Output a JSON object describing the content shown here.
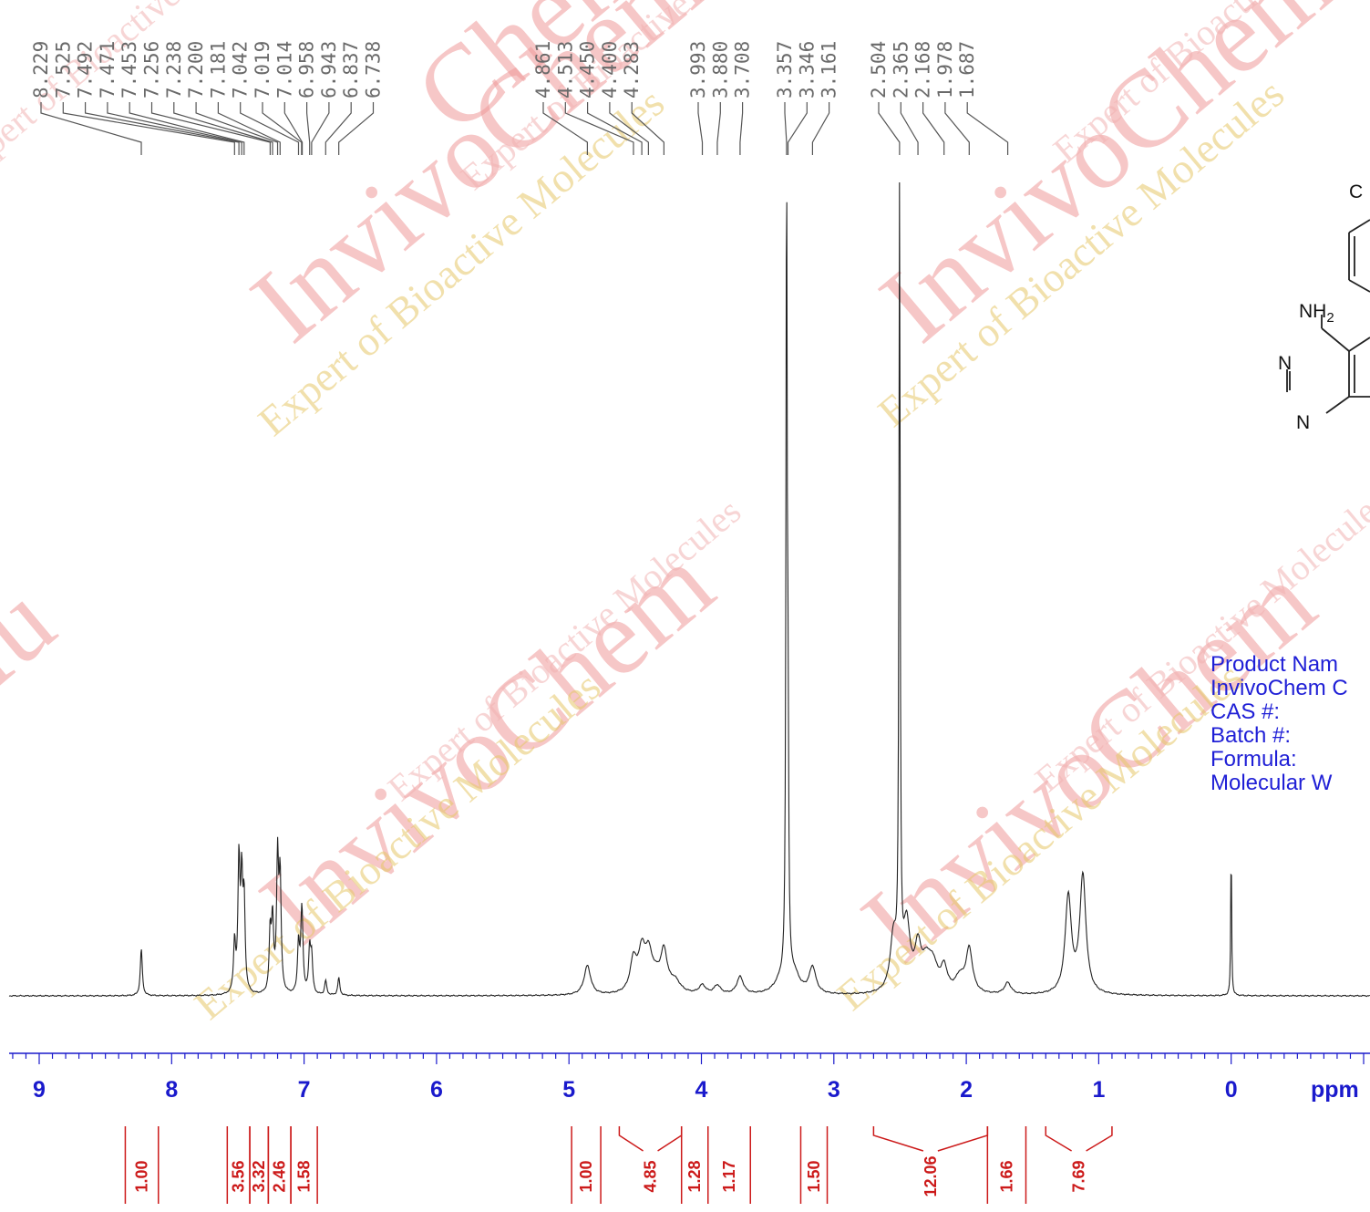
{
  "chart_data": {
    "type": "line",
    "title": "",
    "xlabel": "ppm",
    "ylabel": "",
    "x_axis": {
      "reversed": true,
      "xlim": [
        9.22,
        -1.0
      ],
      "tick_labels": [
        "9",
        "8",
        "7",
        "6",
        "5",
        "4",
        "3",
        "2",
        "1",
        "0"
      ],
      "minor_tick_step": 0.1
    },
    "grid": false,
    "peak_labels": [
      "8.229",
      "7.525",
      "7.492",
      "7.471",
      "7.453",
      "7.256",
      "7.238",
      "7.200",
      "7.181",
      "7.042",
      "7.019",
      "7.014",
      "6.958",
      "6.943",
      "6.837",
      "6.738",
      "4.861",
      "4.513",
      "4.450",
      "4.400",
      "4.283",
      "3.993",
      "3.880",
      "3.708",
      "3.357",
      "3.346",
      "3.161",
      "2.504",
      "2.365",
      "2.168",
      "1.978",
      "1.687"
    ],
    "peak_positions": [
      8.229,
      7.525,
      7.492,
      7.471,
      7.453,
      7.256,
      7.238,
      7.2,
      7.181,
      7.042,
      7.019,
      7.014,
      6.958,
      6.943,
      6.837,
      6.738,
      4.861,
      4.513,
      4.45,
      4.4,
      4.283,
      3.993,
      3.88,
      3.708,
      3.357,
      3.346,
      3.161,
      2.504,
      2.365,
      2.168,
      1.978,
      1.687
    ],
    "integrals": [
      {
        "label": "1.00",
        "from": 8.35,
        "to": 8.1
      },
      {
        "label": "3.56",
        "from": 7.58,
        "to": 7.41
      },
      {
        "label": "3.32",
        "from": 7.41,
        "to": 7.27
      },
      {
        "label": "2.46",
        "from": 7.27,
        "to": 7.1
      },
      {
        "label": "1.58",
        "from": 7.1,
        "to": 6.9
      },
      {
        "label": "1.00",
        "from": 4.98,
        "to": 4.76
      },
      {
        "label": "4.85",
        "from": 4.62,
        "to": 4.15
      },
      {
        "label": "1.28",
        "from": 4.15,
        "to": 3.95
      },
      {
        "label": "1.17",
        "from": 3.95,
        "to": 3.63
      },
      {
        "label": "1.50",
        "from": 3.25,
        "to": 3.05
      },
      {
        "label": "12.06",
        "from": 2.7,
        "to": 1.84
      },
      {
        "label": "1.66",
        "from": 1.84,
        "to": 1.55
      },
      {
        "label": "7.69",
        "from": 1.4,
        "to": 0.9
      }
    ],
    "series": [
      {
        "values": [
          {
            "x": 8.229,
            "y": 0.16
          },
          {
            "x": 7.525,
            "y": 0.17
          },
          {
            "x": 7.492,
            "y": 0.44
          },
          {
            "x": 7.471,
            "y": 0.36
          },
          {
            "x": 7.453,
            "y": 0.3
          },
          {
            "x": 7.256,
            "y": 0.2
          },
          {
            "x": 7.238,
            "y": 0.24
          },
          {
            "x": 7.2,
            "y": 0.45
          },
          {
            "x": 7.181,
            "y": 0.38
          },
          {
            "x": 7.042,
            "y": 0.17
          },
          {
            "x": 7.019,
            "y": 0.17
          },
          {
            "x": 7.014,
            "y": 0.14
          },
          {
            "x": 6.958,
            "y": 0.15
          },
          {
            "x": 6.943,
            "y": 0.12
          },
          {
            "x": 6.837,
            "y": 0.05
          },
          {
            "x": 6.738,
            "y": 0.06
          },
          {
            "x": 4.861,
            "y": 0.1
          },
          {
            "x": 4.513,
            "y": 0.11
          },
          {
            "x": 4.45,
            "y": 0.13
          },
          {
            "x": 4.4,
            "y": 0.11
          },
          {
            "x": 4.283,
            "y": 0.13
          },
          {
            "x": 3.993,
            "y": 0.03
          },
          {
            "x": 3.88,
            "y": 0.03
          },
          {
            "x": 3.708,
            "y": 0.06
          },
          {
            "x": 3.357,
            "y": 2.73
          },
          {
            "x": 3.346,
            "y": 0.75
          },
          {
            "x": 3.161,
            "y": 0.09
          },
          {
            "x": 2.504,
            "y": 2.69
          },
          {
            "x": 2.365,
            "y": 0.14
          },
          {
            "x": 2.168,
            "y": 0.08
          },
          {
            "x": 1.978,
            "y": 0.15
          },
          {
            "x": 1.687,
            "y": 0.04
          },
          {
            "x": 1.23,
            "y": 0.33
          },
          {
            "x": 1.12,
            "y": 0.4
          },
          {
            "x": 0.0,
            "y": 0.52
          }
        ]
      }
    ]
  },
  "info": {
    "product_name": "Product Nam",
    "catalog": "InvivoChem C",
    "cas": "CAS #:",
    "batch": "Batch #:",
    "formula": "Formula:",
    "mw": "Molecular W"
  },
  "structure": {
    "nh2": "NH",
    "nh2_sub": "2",
    "n1": "N",
    "n2": "N",
    "partial": "C"
  },
  "watermark": {
    "brand": "InvivoChem",
    "tagline1": "Expert of Bioactive Molecules",
    "brand_partial_left": "Iu",
    "brand_partial_top": "Chem"
  },
  "colors": {
    "axis": "#1a1acc",
    "integral": "#cc1a1a",
    "peak_label": "#6a6a6a",
    "spectrum": "#222222",
    "info_text": "#1f1fd6"
  }
}
